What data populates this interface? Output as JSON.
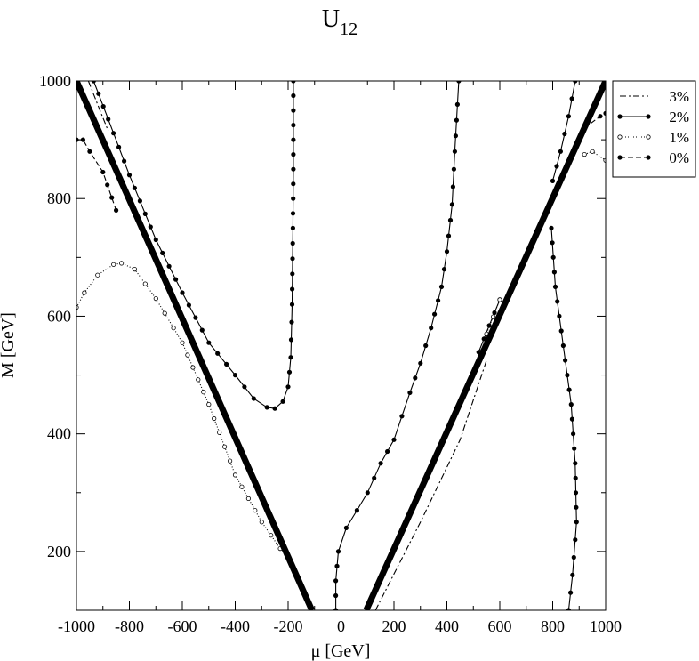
{
  "chart_data": {
    "type": "line",
    "title": "U",
    "title_subscript": "12",
    "xlabel": "μ [GeV]",
    "ylabel": "M [GeV]",
    "xlim": [
      -1000,
      1000
    ],
    "ylim": [
      100,
      1000
    ],
    "xticks": [
      -1000,
      -800,
      -600,
      -400,
      -200,
      0,
      200,
      400,
      600,
      800,
      1000
    ],
    "yticks": [
      200,
      400,
      600,
      800,
      1000
    ],
    "grid": false,
    "legend_position": "outside-top-right",
    "legend": [
      {
        "label": "3%",
        "style": "dash-dot"
      },
      {
        "label": "2%",
        "style": "solid-filled-markers"
      },
      {
        "label": "1%",
        "style": "dotted-open-markers"
      },
      {
        "label": "0%",
        "style": "dashed-filled-markers"
      }
    ],
    "thick_lines": [
      {
        "points": [
          [
            -1000,
            1000
          ],
          [
            -110,
            100
          ]
        ]
      },
      {
        "points": [
          [
            95,
            100
          ],
          [
            1000,
            1000
          ]
        ]
      }
    ],
    "series": [
      {
        "style": "dash-dot",
        "segments": [
          [
            [
              -955,
              1000
            ],
            [
              -920,
              960
            ],
            [
              -880,
              915
            ]
          ],
          [
            [
              130,
              100
            ],
            [
              300,
              250
            ],
            [
              450,
              390
            ],
            [
              550,
              525
            ]
          ],
          [
            [
              800,
              805
            ],
            [
              880,
              885
            ],
            [
              960,
              960
            ],
            [
              1000,
              1000
            ]
          ]
        ]
      },
      {
        "style": "solid-filled-markers",
        "segments": [
          [
            [
              -935,
              1000
            ],
            [
              -880,
              935
            ],
            [
              -800,
              840
            ],
            [
              -700,
              730
            ],
            [
              -600,
              640
            ],
            [
              -500,
              555
            ],
            [
              -400,
              500
            ],
            [
              -330,
              460
            ],
            [
              -280,
              445
            ],
            [
              -250,
              443
            ],
            [
              -220,
              455
            ],
            [
              -200,
              480
            ],
            [
              -190,
              530
            ],
            [
              -185,
              620
            ],
            [
              -182,
              750
            ],
            [
              -180,
              850
            ],
            [
              -180,
              1000
            ]
          ],
          [
            [
              -20,
              100
            ],
            [
              -20,
              150
            ],
            [
              -10,
              200
            ],
            [
              20,
              240
            ],
            [
              60,
              270
            ],
            [
              100,
              300
            ],
            [
              150,
              350
            ],
            [
              200,
              390
            ],
            [
              230,
              430
            ],
            [
              260,
              470
            ],
            [
              300,
              520
            ],
            [
              340,
              580
            ],
            [
              380,
              650
            ],
            [
              400,
              710
            ],
            [
              420,
              790
            ],
            [
              430,
              880
            ],
            [
              440,
              960
            ],
            [
              445,
              1000
            ]
          ],
          [
            [
              600,
              628
            ],
            [
              560,
              584
            ],
            [
              520,
              539
            ]
          ],
          [
            [
              800,
              830
            ],
            [
              830,
              880
            ],
            [
              860,
              940
            ],
            [
              885,
              1000
            ]
          ],
          [
            [
              795,
              750
            ],
            [
              810,
              650
            ],
            [
              840,
              550
            ],
            [
              870,
              450
            ],
            [
              885,
              350
            ],
            [
              890,
              250
            ],
            [
              875,
              160
            ],
            [
              860,
              100
            ]
          ]
        ]
      },
      {
        "style": "dotted-open-markers",
        "segments": [
          [
            [
              -1000,
              615
            ],
            [
              -970,
              640
            ],
            [
              -920,
              670
            ],
            [
              -860,
              688
            ],
            [
              -830,
              690
            ],
            [
              -780,
              680
            ],
            [
              -700,
              630
            ],
            [
              -600,
              555
            ],
            [
              -500,
              450
            ],
            [
              -400,
              330
            ],
            [
              -300,
              250
            ],
            [
              -230,
              205
            ]
          ],
          [
            [
              600,
              628
            ],
            [
              550,
              570
            ],
            [
              510,
              510
            ]
          ],
          [
            [
              920,
              875
            ],
            [
              950,
              880
            ],
            [
              1000,
              865
            ]
          ]
        ]
      },
      {
        "style": "dashed-filled-markers",
        "segments": [
          [
            [
              -1000,
              900
            ],
            [
              -975,
              900
            ],
            [
              -950,
              880
            ],
            [
              -900,
              845
            ],
            [
              -850,
              780
            ]
          ],
          [
            [
              920,
              920
            ],
            [
              980,
              940
            ],
            [
              1000,
              945
            ]
          ]
        ]
      }
    ]
  }
}
